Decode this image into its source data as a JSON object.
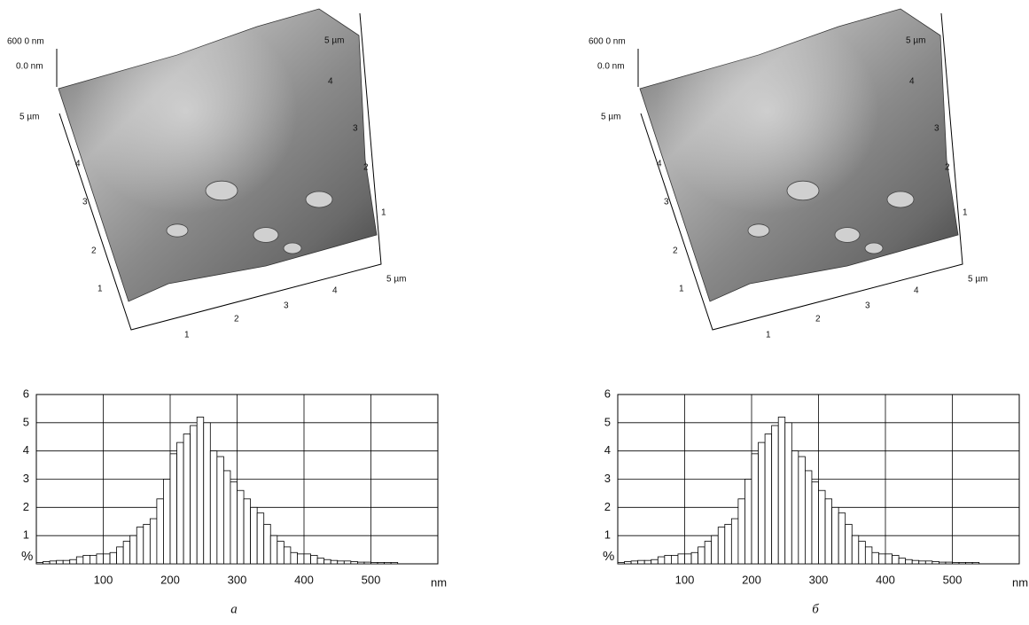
{
  "chart_data": [
    {
      "type": "histogram",
      "caption": "а",
      "xlabel": "nm",
      "ylabel": "%",
      "bins": [
        0,
        10,
        20,
        30,
        40,
        50,
        60,
        70,
        80,
        90,
        100,
        110,
        120,
        130,
        140,
        150,
        160,
        170,
        180,
        190,
        200,
        210,
        220,
        230,
        240,
        250,
        260,
        270,
        280,
        290,
        300,
        310,
        320,
        330,
        340,
        350,
        360,
        370,
        380,
        390,
        400,
        410,
        420,
        430,
        440,
        450,
        460,
        470,
        480,
        490,
        500,
        510,
        520,
        530,
        540
      ],
      "values": [
        0.05,
        0.08,
        0.1,
        0.12,
        0.12,
        0.15,
        0.25,
        0.3,
        0.3,
        0.35,
        0.35,
        0.4,
        0.6,
        0.8,
        1.0,
        1.3,
        1.4,
        1.6,
        2.3,
        3.0,
        3.9,
        4.3,
        4.6,
        4.9,
        5.2,
        5.0,
        4.0,
        3.8,
        3.3,
        2.9,
        2.6,
        2.3,
        2.0,
        1.8,
        1.4,
        1.0,
        0.8,
        0.6,
        0.4,
        0.35,
        0.35,
        0.3,
        0.2,
        0.15,
        0.12,
        0.1,
        0.1,
        0.08,
        0.06,
        0.06,
        0.05,
        0.05,
        0.05,
        0.05
      ],
      "color": "#000000",
      "xlim": [
        0,
        600
      ],
      "ylim": [
        0,
        6
      ],
      "xticks": [
        100,
        200,
        300,
        400,
        500
      ],
      "yticks": [
        1,
        2,
        3,
        4,
        5,
        6
      ],
      "grid": true,
      "surface": {
        "z_labels": [
          "600 0 nm",
          "0.0 nm"
        ],
        "left_axis": [
          "5 µm",
          "4",
          "3",
          "2",
          "1"
        ],
        "bottom_axis": [
          "1",
          "2",
          "3",
          "4",
          "5 µm"
        ],
        "right_axis": [
          "5 µm",
          "4",
          "3",
          "2",
          "1"
        ]
      }
    },
    {
      "type": "histogram",
      "caption": "б",
      "xlabel": "nm",
      "ylabel": "%",
      "bins": [
        0,
        10,
        20,
        30,
        40,
        50,
        60,
        70,
        80,
        90,
        100,
        110,
        120,
        130,
        140,
        150,
        160,
        170,
        180,
        190,
        200,
        210,
        220,
        230,
        240,
        250,
        260,
        270,
        280,
        290,
        300,
        310,
        320,
        330,
        340,
        350,
        360,
        370,
        380,
        390,
        400,
        410,
        420,
        430,
        440,
        450,
        460,
        470,
        480,
        490,
        500,
        510,
        520,
        530,
        540
      ],
      "values": [
        0.05,
        0.08,
        0.1,
        0.12,
        0.12,
        0.15,
        0.25,
        0.3,
        0.3,
        0.35,
        0.35,
        0.4,
        0.6,
        0.8,
        1.0,
        1.3,
        1.4,
        1.6,
        2.3,
        3.0,
        3.9,
        4.3,
        4.6,
        4.9,
        5.2,
        5.0,
        4.0,
        3.8,
        3.3,
        2.9,
        2.6,
        2.3,
        2.0,
        1.8,
        1.4,
        1.0,
        0.8,
        0.6,
        0.4,
        0.35,
        0.35,
        0.3,
        0.2,
        0.15,
        0.12,
        0.1,
        0.1,
        0.08,
        0.06,
        0.06,
        0.05,
        0.05,
        0.05,
        0.05
      ],
      "color": "#000000",
      "xlim": [
        0,
        600
      ],
      "ylim": [
        0,
        6
      ],
      "xticks": [
        100,
        200,
        300,
        400,
        500
      ],
      "yticks": [
        1,
        2,
        3,
        4,
        5,
        6
      ],
      "grid": true,
      "surface": {
        "z_labels": [
          "600 0 nm",
          "0.0 nm"
        ],
        "left_axis": [
          "5 µm",
          "4",
          "3",
          "2",
          "1"
        ],
        "bottom_axis": [
          "1",
          "2",
          "3",
          "4",
          "5 µm"
        ],
        "right_axis": [
          "5 µm",
          "4",
          "3",
          "2",
          "1"
        ]
      }
    }
  ]
}
